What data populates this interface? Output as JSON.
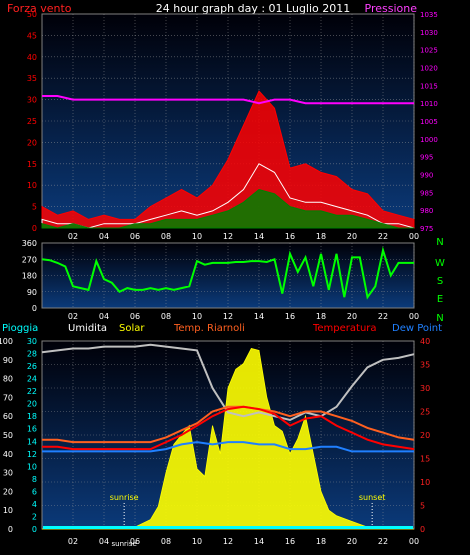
{
  "chart_data": [
    {
      "type": "bar",
      "title": "24 hour graph day : 01 Luglio 2011",
      "left_axis_label": "Forza vento",
      "right_axis_label": "Pressione",
      "left_ticks": [
        "0",
        "5",
        "10",
        "15",
        "20",
        "25",
        "30",
        "35",
        "40",
        "45",
        "50"
      ],
      "right_ticks": [
        "975",
        "980",
        "985",
        "990",
        "995",
        "1000",
        "1005",
        "1010",
        "1015",
        "1020",
        "1025",
        "1030",
        "1035"
      ],
      "x_ticks": [
        "02",
        "04",
        "06",
        "08",
        "10",
        "12",
        "14",
        "16",
        "18",
        "20",
        "22",
        "00"
      ],
      "ylim": [
        0,
        50
      ],
      "ylim_right": [
        975,
        1035
      ],
      "x_range_hours": [
        0,
        24
      ],
      "grid": true,
      "series": [
        {
          "name": "gust",
          "color": "#ff0000",
          "x": [
            0,
            1,
            2,
            3,
            4,
            5,
            6,
            7,
            8,
            9,
            10,
            11,
            12,
            13,
            14,
            15,
            16,
            17,
            18,
            19,
            20,
            21,
            22,
            23,
            24
          ],
          "values": [
            5,
            3,
            4,
            2,
            3,
            2,
            2,
            5,
            7,
            9,
            7,
            10,
            16,
            24,
            32,
            28,
            14,
            15,
            13,
            12,
            9,
            8,
            4,
            3,
            2
          ]
        },
        {
          "name": "wind",
          "color": "#ffffff",
          "x": [
            0,
            1,
            2,
            3,
            4,
            5,
            6,
            7,
            8,
            9,
            10,
            11,
            12,
            13,
            14,
            15,
            16,
            17,
            18,
            19,
            20,
            21,
            22,
            23,
            24
          ],
          "values": [
            2,
            1,
            1,
            0,
            1,
            1,
            1,
            2,
            3,
            4,
            3,
            4,
            6,
            9,
            15,
            13,
            7,
            6,
            6,
            5,
            4,
            3,
            1,
            1,
            0
          ]
        },
        {
          "name": "average",
          "color": "#008000",
          "x": [
            0,
            1,
            2,
            3,
            4,
            5,
            6,
            7,
            8,
            9,
            10,
            11,
            12,
            13,
            14,
            15,
            16,
            17,
            18,
            19,
            20,
            21,
            22,
            23,
            24
          ],
          "values": [
            1,
            0,
            1,
            0,
            0,
            0,
            1,
            1,
            2,
            2,
            2,
            3,
            4,
            6,
            9,
            8,
            5,
            4,
            4,
            3,
            3,
            2,
            1,
            0,
            0
          ]
        },
        {
          "name": "pressure",
          "color": "#ff00ff",
          "axis": "right",
          "x": [
            0,
            1,
            2,
            3,
            4,
            5,
            6,
            7,
            8,
            9,
            10,
            11,
            12,
            13,
            14,
            15,
            16,
            17,
            18,
            19,
            20,
            21,
            22,
            23,
            24
          ],
          "values": [
            1012,
            1012,
            1011,
            1011,
            1011,
            1011,
            1011,
            1011,
            1011,
            1011,
            1011,
            1011,
            1011,
            1011,
            1010,
            1011,
            1011,
            1010,
            1010,
            1010,
            1010,
            1010,
            1010,
            1010,
            1010
          ]
        }
      ]
    },
    {
      "type": "line",
      "left_ticks": [
        "0",
        "90",
        "180",
        "270",
        "360"
      ],
      "right_labels": [
        "N",
        "W",
        "S",
        "E",
        "N"
      ],
      "x_ticks": [
        "02",
        "04",
        "06",
        "08",
        "10",
        "12",
        "14",
        "16",
        "18",
        "20",
        "22",
        "00"
      ],
      "ylim": [
        0,
        360
      ],
      "grid": true,
      "series": [
        {
          "name": "direction",
          "color": "#00ff00",
          "x": [
            0,
            0.5,
            1,
            1.5,
            2,
            2.5,
            3,
            3.5,
            4,
            4.5,
            5,
            5.5,
            6,
            6.5,
            7,
            7.5,
            8,
            8.5,
            9,
            9.5,
            10,
            10.5,
            11,
            11.5,
            12,
            12.5,
            13,
            13.5,
            14,
            14.5,
            15,
            15.5,
            16,
            16.5,
            17,
            17.5,
            18,
            18.5,
            19,
            19.5,
            20,
            20.5,
            21,
            21.5,
            22,
            22.5,
            23,
            23.5,
            24
          ],
          "values": [
            270,
            265,
            250,
            230,
            120,
            110,
            100,
            260,
            160,
            140,
            90,
            110,
            100,
            100,
            110,
            100,
            110,
            100,
            110,
            120,
            260,
            240,
            250,
            250,
            250,
            255,
            255,
            260,
            260,
            255,
            270,
            80,
            300,
            200,
            280,
            120,
            300,
            100,
            300,
            60,
            280,
            280,
            60,
            120,
            320,
            180,
            250,
            250,
            250
          ]
        }
      ]
    },
    {
      "type": "line",
      "legend": [
        "Pioggia",
        "Umidita",
        "Solar",
        "Temp. Riarnoli",
        "Temperatura",
        "Dew Point"
      ],
      "left_ticks": [
        "0",
        "10",
        "20",
        "30",
        "40",
        "50",
        "60",
        "70",
        "80",
        "90",
        "100"
      ],
      "left2_ticks": [
        "0",
        "2",
        "4",
        "6",
        "8",
        "10",
        "12",
        "14",
        "16",
        "18",
        "20",
        "22",
        "24",
        "26",
        "28",
        "30"
      ],
      "right_ticks": [
        "0",
        "5",
        "10",
        "15",
        "20",
        "25",
        "30",
        "35",
        "40"
      ],
      "x_ticks": [
        "02",
        "04",
        "sunrise",
        "06",
        "08",
        "10",
        "12",
        "14",
        "16",
        "18",
        "20",
        "22",
        "00"
      ],
      "annotations": [
        {
          "text": "sunrise",
          "hour": 5.3
        },
        {
          "text": "sunset",
          "hour": 21.3
        }
      ],
      "ylim": [
        0,
        40
      ],
      "grid": true,
      "series": [
        {
          "name": "Solar",
          "color": "#ffff00",
          "axis": "left-percent",
          "x": [
            0,
            5,
            6,
            7,
            7.5,
            8,
            8.5,
            9,
            9.5,
            10,
            10.5,
            11,
            11.5,
            12,
            12.5,
            13,
            13.5,
            14,
            14.5,
            15,
            15.5,
            16,
            16.5,
            17,
            17.5,
            18,
            18.5,
            19,
            20,
            21,
            22,
            24
          ],
          "values": [
            0,
            0,
            1,
            5,
            12,
            30,
            45,
            50,
            55,
            32,
            28,
            55,
            40,
            75,
            85,
            88,
            96,
            95,
            70,
            55,
            52,
            40,
            48,
            60,
            40,
            20,
            10,
            7,
            4,
            1,
            0,
            0
          ]
        },
        {
          "name": "Umidita",
          "color": "#c0c0c0",
          "axis": "left-percent",
          "x": [
            0,
            1,
            2,
            3,
            4,
            5,
            6,
            7,
            8,
            9,
            10,
            11,
            12,
            13,
            14,
            15,
            16,
            17,
            18,
            19,
            20,
            21,
            22,
            23,
            24
          ],
          "values": [
            94,
            95,
            96,
            96,
            97,
            97,
            97,
            98,
            97,
            96,
            95,
            75,
            62,
            60,
            62,
            60,
            58,
            62,
            60,
            65,
            76,
            86,
            90,
            91,
            93
          ]
        },
        {
          "name": "Temp. Riarnoli",
          "color": "#ff6020",
          "axis": "right",
          "x": [
            0,
            1,
            2,
            3,
            4,
            5,
            6,
            7,
            8,
            9,
            10,
            11,
            12,
            13,
            14,
            15,
            16,
            17,
            18,
            19,
            20,
            21,
            22,
            23,
            24
          ],
          "values": [
            19,
            19,
            18.5,
            18.5,
            18.5,
            18.5,
            18.5,
            18.5,
            19.5,
            21,
            22.5,
            25,
            26,
            26,
            25.5,
            25,
            24,
            25,
            25,
            24,
            23,
            21.5,
            20.5,
            19.5,
            19
          ]
        },
        {
          "name": "Temperatura",
          "color": "#ff0000",
          "axis": "right",
          "x": [
            0,
            1,
            2,
            3,
            4,
            5,
            6,
            7,
            8,
            9,
            10,
            11,
            12,
            13,
            14,
            15,
            16,
            17,
            18,
            19,
            20,
            21,
            22,
            23,
            24
          ],
          "values": [
            17.5,
            17.5,
            17,
            17,
            17,
            17,
            17,
            17,
            18.5,
            20,
            22,
            24,
            25.5,
            26,
            25.5,
            24.5,
            22,
            23.5,
            24,
            22,
            20.5,
            19,
            18,
            17.5,
            17
          ]
        },
        {
          "name": "Dew Point",
          "color": "#2080ff",
          "axis": "right",
          "x": [
            0,
            1,
            2,
            3,
            4,
            5,
            6,
            7,
            8,
            9,
            10,
            11,
            12,
            13,
            14,
            15,
            16,
            17,
            18,
            19,
            20,
            21,
            22,
            23,
            24
          ],
          "values": [
            16.5,
            16.5,
            16.5,
            16.5,
            16.5,
            16.5,
            16.5,
            16.5,
            17,
            18,
            18.5,
            18,
            18.5,
            18.5,
            18,
            18,
            17,
            17,
            17.5,
            17.5,
            16.5,
            16.5,
            16.5,
            16.5,
            16.5
          ]
        },
        {
          "name": "Pioggia",
          "color": "#00ffff",
          "axis": "left-rain",
          "x": [
            0,
            24
          ],
          "values": [
            0,
            0
          ]
        }
      ]
    }
  ],
  "colors": {
    "left_wind_axis": "#ff0000",
    "right_pressure_axis": "#ff00ff",
    "title": "#ffffff",
    "panel_bg_top": "#000010",
    "panel_bg_bottom": "#0a3070",
    "grid": "#a0a0a0",
    "direction": "#00ff00",
    "rain": "#00ffff",
    "humidity": "#ffffff",
    "solar": "#ffff00",
    "temp_r": "#ff6020",
    "temp": "#ff0000",
    "dew": "#2080ff"
  }
}
